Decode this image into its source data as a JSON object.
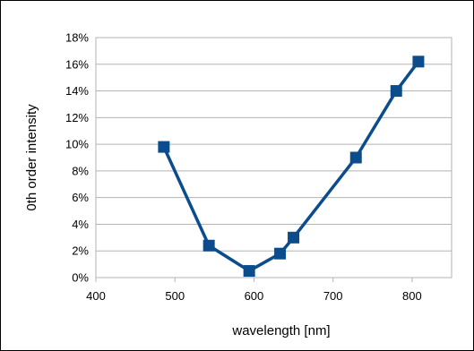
{
  "chart_data": {
    "type": "line",
    "title": "",
    "xlabel": "wavelength [nm]",
    "ylabel": "0th order intensity",
    "xlim": [
      400,
      850
    ],
    "ylim": [
      0,
      0.18
    ],
    "x_ticks": [
      400,
      500,
      600,
      700,
      800
    ],
    "x_tick_labels": [
      "400",
      "500",
      "600",
      "700",
      "800"
    ],
    "y_ticks": [
      0,
      0.02,
      0.04,
      0.06,
      0.08,
      0.1,
      0.12,
      0.14,
      0.16,
      0.18
    ],
    "y_tick_labels": [
      "0%",
      "2%",
      "4%",
      "6%",
      "8%",
      "10%",
      "12%",
      "14%",
      "16%",
      "18%"
    ],
    "grid": {
      "horizontal": true,
      "vertical": false
    },
    "legend": "none",
    "series": [
      {
        "color": "#0b4d8c",
        "marker": "square",
        "x": [
          486,
          543,
          594,
          633,
          650,
          729,
          780,
          808
        ],
        "y": [
          0.098,
          0.024,
          0.005,
          0.018,
          0.03,
          0.09,
          0.14,
          0.162
        ]
      }
    ]
  }
}
